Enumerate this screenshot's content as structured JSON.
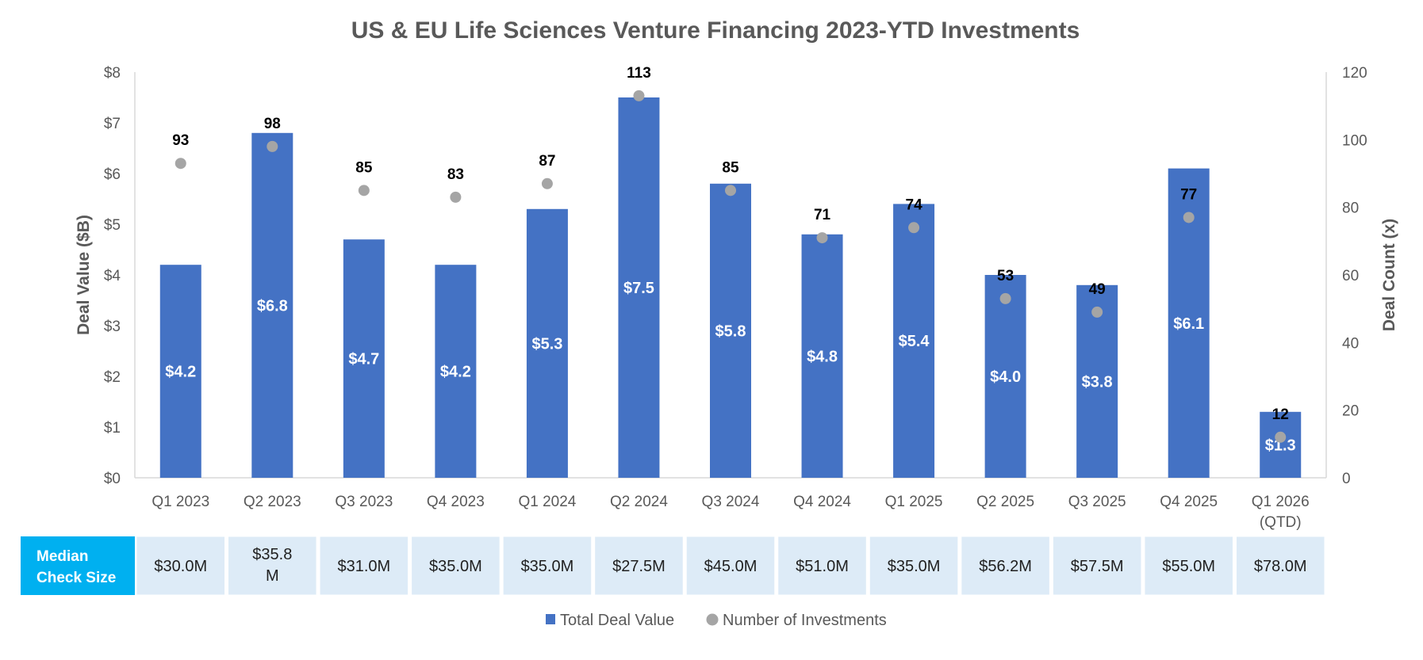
{
  "chart_data": {
    "type": "bar",
    "title": "US & EU Life Sciences Venture Financing 2023-YTD Investments",
    "categories": [
      [
        "Q1 2023"
      ],
      [
        "Q2 2023"
      ],
      [
        "Q3 2023"
      ],
      [
        "Q4 2023"
      ],
      [
        "Q1 2024"
      ],
      [
        "Q2 2024"
      ],
      [
        "Q3 2024"
      ],
      [
        "Q4 2024"
      ],
      [
        "Q1 2025"
      ],
      [
        "Q2 2025"
      ],
      [
        "Q3 2025"
      ],
      [
        "Q4 2025"
      ],
      [
        "Q1 2026",
        "(QTD)"
      ]
    ],
    "series": [
      {
        "name": "Total Deal Value",
        "type": "bar",
        "axis": "left",
        "values": [
          4.2,
          6.8,
          4.7,
          4.2,
          5.3,
          7.5,
          5.8,
          4.8,
          5.4,
          4.0,
          3.8,
          6.1,
          1.3
        ],
        "labels": [
          "$4.2",
          "$6.8",
          "$4.7",
          "$4.2",
          "$5.3",
          "$7.5",
          "$5.8",
          "$4.8",
          "$5.4",
          "$4.0",
          "$3.8",
          "$6.1",
          "$1.3"
        ]
      },
      {
        "name": "Number of Investments",
        "type": "scatter",
        "axis": "right",
        "values": [
          93,
          98,
          85,
          83,
          87,
          113,
          85,
          71,
          74,
          53,
          49,
          77,
          12
        ]
      }
    ],
    "ylabel": "Deal Value ($B)",
    "y2label": "Deal Count (x)",
    "ylim": [
      0,
      8
    ],
    "y2lim": [
      0,
      120
    ],
    "yticks": [
      "$0",
      "$1",
      "$2",
      "$3",
      "$4",
      "$5",
      "$6",
      "$7",
      "$8"
    ],
    "y2ticks": [
      "0",
      "20",
      "40",
      "60",
      "80",
      "100",
      "120"
    ],
    "legend_position": "bottom",
    "grid": false,
    "table": {
      "header": [
        "Median",
        "Check Size"
      ],
      "cells": [
        [
          "$30.0M"
        ],
        [
          "$35.8",
          "M"
        ],
        [
          "$31.0M"
        ],
        [
          "$35.0M"
        ],
        [
          "$35.0M"
        ],
        [
          "$27.5M"
        ],
        [
          "$45.0M"
        ],
        [
          "$51.0M"
        ],
        [
          "$35.0M"
        ],
        [
          "$56.2M"
        ],
        [
          "$57.5M"
        ],
        [
          "$55.0M"
        ],
        [
          "$78.0M"
        ]
      ]
    },
    "colors": {
      "bar": "#4472C4",
      "dot": "#A5A5A5",
      "header_bg": "#00B0F0",
      "cell_bg": "#DDEBF7",
      "axis": "#D9D9D9"
    }
  }
}
